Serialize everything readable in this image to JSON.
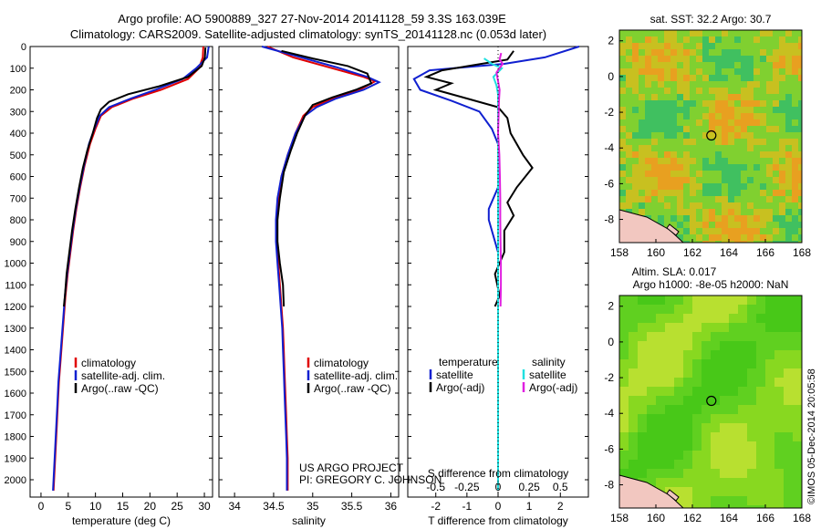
{
  "figure": {
    "title_line1": "Argo profile: AO 5900889_327 27-Nov-2014 20141128_59 3.3S 163.039E",
    "title_line2": "Climatology: CARS2009. Satellite-adjusted climatology: synTS_20141128.nc (0.053d later)",
    "credit_line1": "US ARGO PROJECT",
    "credit_line2": "PI: GREGORY C. JOHNSON",
    "timestamp": "©IMOS 05-Dec-2014 20:05:58"
  },
  "chart_data": [
    {
      "type": "line",
      "id": "temperature-profile",
      "xlabel": "temperature (deg C)",
      "xlim": [
        -2,
        31.5
      ],
      "xticks": [
        0,
        5,
        10,
        15,
        20,
        25,
        30
      ],
      "ylim": [
        2080,
        0
      ],
      "yticks": [
        0,
        100,
        200,
        300,
        400,
        500,
        600,
        700,
        800,
        900,
        1000,
        1100,
        1200,
        1300,
        1400,
        1500,
        1600,
        1700,
        1800,
        1900,
        2000
      ],
      "legend": [
        "climatology",
        "satellite-adj. clim.",
        "Argo(..raw -QC)"
      ],
      "series": [
        {
          "name": "climatology",
          "color": "#e00000",
          "points": [
            [
              29.8,
              0
            ],
            [
              29.7,
              50
            ],
            [
              29.0,
              100
            ],
            [
              27.0,
              150
            ],
            [
              22.0,
              200
            ],
            [
              17.0,
              240
            ],
            [
              13.0,
              280
            ],
            [
              11.0,
              320
            ],
            [
              10.0,
              380
            ],
            [
              9.0,
              450
            ],
            [
              8.0,
              550
            ],
            [
              7.2,
              650
            ],
            [
              6.5,
              750
            ],
            [
              5.9,
              850
            ],
            [
              5.4,
              950
            ],
            [
              4.9,
              1050
            ],
            [
              4.5,
              1150
            ],
            [
              4.2,
              1250
            ],
            [
              3.9,
              1350
            ],
            [
              3.6,
              1450
            ],
            [
              3.3,
              1550
            ],
            [
              3.1,
              1650
            ],
            [
              2.9,
              1750
            ],
            [
              2.7,
              1850
            ],
            [
              2.5,
              1950
            ],
            [
              2.3,
              2050
            ]
          ]
        },
        {
          "name": "satellite-adj. clim.",
          "color": "#1020d0",
          "points": [
            [
              30.8,
              0
            ],
            [
              30.5,
              50
            ],
            [
              28.5,
              100
            ],
            [
              26.0,
              150
            ],
            [
              21.0,
              200
            ],
            [
              16.5,
              240
            ],
            [
              12.5,
              280
            ],
            [
              10.8,
              320
            ],
            [
              9.8,
              380
            ],
            [
              8.8,
              450
            ],
            [
              7.9,
              550
            ],
            [
              7.1,
              650
            ],
            [
              6.4,
              750
            ],
            [
              5.8,
              850
            ],
            [
              5.3,
              950
            ],
            [
              4.8,
              1050
            ],
            [
              4.4,
              1150
            ],
            [
              4.1,
              1250
            ],
            [
              3.8,
              1350
            ],
            [
              3.5,
              1450
            ],
            [
              3.2,
              1550
            ],
            [
              3.0,
              1650
            ],
            [
              2.8,
              1750
            ],
            [
              2.6,
              1850
            ],
            [
              2.4,
              1950
            ],
            [
              2.2,
              2050
            ]
          ]
        },
        {
          "name": "Argo(..raw -QC)",
          "color": "#000000",
          "points": [
            [
              30.2,
              5
            ],
            [
              30.1,
              50
            ],
            [
              29.5,
              90
            ],
            [
              27.0,
              140
            ],
            [
              21.5,
              185
            ],
            [
              16.0,
              220
            ],
            [
              12.5,
              255
            ],
            [
              11.0,
              290
            ],
            [
              10.3,
              330
            ],
            [
              9.5,
              400
            ],
            [
              8.5,
              480
            ],
            [
              7.7,
              560
            ],
            [
              7.0,
              650
            ],
            [
              6.3,
              750
            ],
            [
              5.7,
              850
            ],
            [
              5.2,
              950
            ],
            [
              4.7,
              1050
            ],
            [
              4.4,
              1150
            ],
            [
              4.2,
              1200
            ]
          ]
        }
      ]
    },
    {
      "type": "line",
      "id": "salinity-profile",
      "xlabel": "salinity",
      "xlim": [
        33.8,
        36.1
      ],
      "xticks": [
        34,
        34.5,
        35,
        35.5,
        36
      ],
      "ylim": [
        2080,
        0
      ],
      "legend": [
        "climatology",
        "satellite-adj. clim.",
        "Argo(..raw -QC)"
      ],
      "series": [
        {
          "name": "climatology",
          "color": "#e00000",
          "points": [
            [
              34.42,
              0
            ],
            [
              34.75,
              50
            ],
            [
              35.25,
              100
            ],
            [
              35.65,
              140
            ],
            [
              35.8,
              160
            ],
            [
              35.6,
              200
            ],
            [
              35.25,
              240
            ],
            [
              35.0,
              280
            ],
            [
              34.88,
              320
            ],
            [
              34.78,
              400
            ],
            [
              34.68,
              500
            ],
            [
              34.6,
              600
            ],
            [
              34.56,
              700
            ],
            [
              34.54,
              800
            ],
            [
              34.54,
              900
            ],
            [
              34.56,
              1000
            ],
            [
              34.58,
              1100
            ],
            [
              34.6,
              1200
            ],
            [
              34.62,
              1300
            ],
            [
              34.63,
              1400
            ],
            [
              34.64,
              1500
            ],
            [
              34.65,
              1600
            ],
            [
              34.66,
              1700
            ],
            [
              34.67,
              1800
            ],
            [
              34.68,
              1900
            ],
            [
              34.68,
              2050
            ]
          ]
        },
        {
          "name": "satellite-adj. clim.",
          "color": "#1020d0",
          "points": [
            [
              34.35,
              0
            ],
            [
              34.8,
              45
            ],
            [
              35.3,
              95
            ],
            [
              35.7,
              140
            ],
            [
              35.85,
              165
            ],
            [
              35.65,
              200
            ],
            [
              35.3,
              240
            ],
            [
              35.05,
              280
            ],
            [
              34.9,
              320
            ],
            [
              34.78,
              400
            ],
            [
              34.68,
              500
            ],
            [
              34.6,
              600
            ],
            [
              34.55,
              700
            ],
            [
              34.53,
              800
            ],
            [
              34.53,
              900
            ],
            [
              34.55,
              1000
            ],
            [
              34.57,
              1100
            ],
            [
              34.59,
              1200
            ],
            [
              34.61,
              1300
            ],
            [
              34.62,
              1400
            ],
            [
              34.63,
              1500
            ],
            [
              34.64,
              1600
            ],
            [
              34.65,
              1700
            ],
            [
              34.66,
              1800
            ],
            [
              34.67,
              1900
            ],
            [
              34.67,
              2050
            ]
          ]
        },
        {
          "name": "Argo(..raw -QC)",
          "color": "#000000",
          "points": [
            [
              34.6,
              20
            ],
            [
              35.0,
              55
            ],
            [
              35.45,
              90
            ],
            [
              35.7,
              125
            ],
            [
              35.75,
              170
            ],
            [
              35.55,
              200
            ],
            [
              35.25,
              235
            ],
            [
              35.0,
              270
            ],
            [
              34.9,
              320
            ],
            [
              34.8,
              400
            ],
            [
              34.72,
              480
            ],
            [
              34.63,
              580
            ],
            [
              34.58,
              700
            ],
            [
              34.55,
              800
            ],
            [
              34.55,
              900
            ],
            [
              34.58,
              1000
            ],
            [
              34.62,
              1100
            ],
            [
              34.63,
              1200
            ]
          ]
        }
      ]
    },
    {
      "type": "line",
      "id": "difference-profile",
      "xlabel": "T difference from climatology",
      "xlabel_top": "S difference from climatology",
      "xlim": [
        -2.9,
        2.9
      ],
      "xticks": [
        -2,
        -1,
        0,
        1,
        2
      ],
      "sticks_labels": [
        "-0.5",
        "-0.25",
        "0",
        "0.25",
        "0.5"
      ],
      "sticks_values": [
        -0.5,
        -0.25,
        0,
        0.25,
        0.5
      ],
      "ylim": [
        2080,
        0
      ],
      "legend_temperature_title": "temperature",
      "legend_salinity_title": "salinity",
      "legend_temperature": [
        "satellite",
        "Argo(-adj)"
      ],
      "legend_salinity": [
        "satellite",
        "Argo(-adj)"
      ],
      "series": [
        {
          "name": "T satellite",
          "color": "#1020d0",
          "points": [
            [
              2.6,
              0
            ],
            [
              1.5,
              50
            ],
            [
              0.2,
              80
            ],
            [
              -2.2,
              110
            ],
            [
              -2.7,
              150
            ],
            [
              -2.5,
              200
            ],
            [
              -1.5,
              250
            ],
            [
              -0.6,
              300
            ],
            [
              -0.2,
              380
            ],
            [
              0,
              450
            ],
            [
              0,
              550
            ],
            [
              0,
              650
            ],
            [
              -0.3,
              750
            ],
            [
              -0.3,
              800
            ],
            [
              -0.2,
              850
            ],
            [
              0,
              950
            ],
            [
              0,
              2050
            ]
          ]
        },
        {
          "name": "T Argo(-adj)",
          "color": "#000000",
          "points": [
            [
              0.5,
              20
            ],
            [
              0.3,
              60
            ],
            [
              -1.8,
              110
            ],
            [
              -2.3,
              140
            ],
            [
              -1.5,
              170
            ],
            [
              -2.0,
              200
            ],
            [
              -1.0,
              240
            ],
            [
              0,
              280
            ],
            [
              0.3,
              330
            ],
            [
              0.4,
              400
            ],
            [
              0.8,
              500
            ],
            [
              1.1,
              560
            ],
            [
              0.6,
              650
            ],
            [
              0.3,
              720
            ],
            [
              0.5,
              780
            ],
            [
              0.2,
              850
            ],
            [
              0.2,
              950
            ],
            [
              -0.1,
              1050
            ],
            [
              0.05,
              1150
            ],
            [
              -0.1,
              1200
            ]
          ]
        },
        {
          "name": "S satellite",
          "color": "#20e0e0",
          "points": [
            [
              -0.45,
              55
            ],
            [
              -0.2,
              80
            ],
            [
              0.12,
              100
            ],
            [
              -0.15,
              140
            ],
            [
              -0.05,
              180
            ],
            [
              0,
              220
            ],
            [
              0,
              300
            ],
            [
              0,
              400
            ],
            [
              0,
              600
            ],
            [
              0,
              1000
            ],
            [
              0,
              2050
            ]
          ]
        },
        {
          "name": "S Argo(-adj)",
          "color": "#e020e0",
          "points": [
            [
              0.1,
              30
            ],
            [
              0.05,
              60
            ],
            [
              0.15,
              80
            ],
            [
              -0.05,
              120
            ],
            [
              0,
              160
            ],
            [
              0.05,
              200
            ],
            [
              0.03,
              250
            ],
            [
              0.02,
              300
            ],
            [
              0,
              400
            ],
            [
              0.04,
              500
            ],
            [
              0.06,
              600
            ],
            [
              0.07,
              700
            ],
            [
              0.07,
              800
            ],
            [
              0.08,
              900
            ],
            [
              0.09,
              1000
            ],
            [
              0.09,
              1100
            ],
            [
              0.08,
              1200
            ]
          ]
        }
      ]
    },
    {
      "type": "heatmap",
      "id": "sst-map",
      "title": "sat. SST: 32.2  Argo: 30.7",
      "xlim": [
        158,
        168
      ],
      "ylim": [
        -9.3,
        2.6
      ],
      "xticks": [
        158,
        160,
        162,
        164,
        166,
        168
      ],
      "yticks": [
        -8,
        -6,
        -4,
        -2,
        0,
        2
      ],
      "marker": {
        "lon": 163.039,
        "lat": -3.3
      }
    },
    {
      "type": "heatmap",
      "id": "sla-map",
      "title_line1": "Altim. SLA: 0.017",
      "title_line2": "Argo h1000: -8e-05 h2000: NaN",
      "xlim": [
        158,
        168
      ],
      "ylim": [
        -9.3,
        2.6
      ],
      "xticks": [
        158,
        160,
        162,
        164,
        166,
        168
      ],
      "yticks": [
        -8,
        -6,
        -4,
        -2,
        0,
        2
      ],
      "marker": {
        "lon": 163.039,
        "lat": -3.3
      }
    }
  ]
}
